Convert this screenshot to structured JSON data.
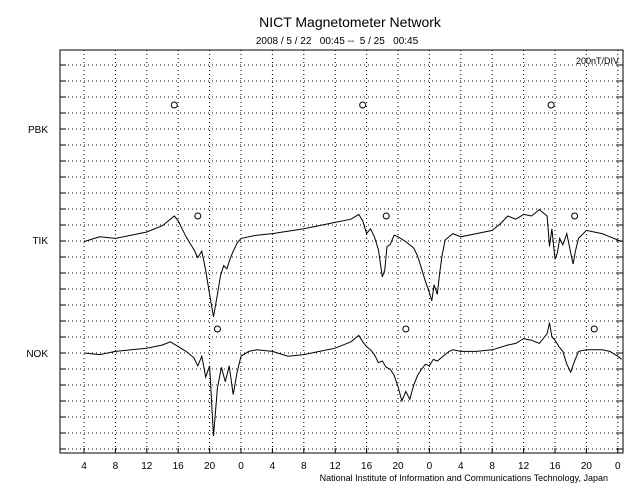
{
  "chart_data": {
    "type": "line",
    "title": "NICT Magnetometer Network",
    "subtitle": "2008 / 5 / 22   00:45 --  5 / 25   00:45",
    "scale_label": "200nT/DIV",
    "footer": "National Institute of Information and Communications Technology, Japan",
    "x_tick_labels": [
      "4",
      "8",
      "12",
      "16",
      "20",
      "0",
      "4",
      "8",
      "12",
      "16",
      "20",
      "0",
      "4",
      "8",
      "12",
      "16",
      "20",
      "0"
    ],
    "station_labels": [
      "PBK",
      "TIK",
      "NOK"
    ],
    "grid": true,
    "stations": [
      {
        "name": "PBK",
        "local_noon_x": [
          11.5,
          35.5,
          59.5
        ],
        "trace": []
      },
      {
        "name": "TIK",
        "local_noon_x": [
          14.5,
          38.5,
          62.5
        ],
        "trace": [
          [
            0,
            -0.05
          ],
          [
            2,
            0.1
          ],
          [
            4,
            0.05
          ],
          [
            6,
            0.15
          ],
          [
            8,
            0.25
          ],
          [
            10,
            0.45
          ],
          [
            11,
            0.65
          ],
          [
            11.5,
            0.75
          ],
          [
            12,
            0.6
          ],
          [
            12.5,
            0.35
          ],
          [
            13,
            0.1
          ],
          [
            13.5,
            -0.1
          ],
          [
            14,
            -0.3
          ],
          [
            14.5,
            -0.55
          ],
          [
            15,
            -0.35
          ],
          [
            15.5,
            -0.95
          ],
          [
            16,
            -1.7
          ],
          [
            16.5,
            -2.4
          ],
          [
            17,
            -1.7
          ],
          [
            17.4,
            -1.1
          ],
          [
            17.8,
            -0.8
          ],
          [
            18.2,
            -0.9
          ],
          [
            18.6,
            -0.6
          ],
          [
            19,
            -0.35
          ],
          [
            19.5,
            -0.1
          ],
          [
            20,
            0.05
          ],
          [
            22,
            0.15
          ],
          [
            24,
            0.2
          ],
          [
            28,
            0.35
          ],
          [
            32,
            0.55
          ],
          [
            34,
            0.65
          ],
          [
            35,
            0.8
          ],
          [
            35.5,
            0.6
          ],
          [
            36,
            0.2
          ],
          [
            36.5,
            0.35
          ],
          [
            37,
            0.1
          ],
          [
            37.5,
            -0.3
          ],
          [
            38,
            -1.15
          ],
          [
            38.3,
            -0.95
          ],
          [
            38.6,
            -0.2
          ],
          [
            39,
            -0.15
          ],
          [
            39.5,
            0.15
          ],
          [
            40,
            0.1
          ],
          [
            41,
            -0.05
          ],
          [
            42,
            -0.25
          ],
          [
            42.5,
            -0.5
          ],
          [
            43,
            -0.9
          ],
          [
            43.5,
            -1.3
          ],
          [
            44,
            -1.65
          ],
          [
            44.3,
            -1.9
          ],
          [
            44.6,
            -1.4
          ],
          [
            45,
            -1.7
          ],
          [
            45.3,
            -1.05
          ],
          [
            45.6,
            -0.5
          ],
          [
            46,
            0
          ],
          [
            46.5,
            0.1
          ],
          [
            47,
            0.2
          ],
          [
            48,
            0.1
          ],
          [
            50,
            0.2
          ],
          [
            52,
            0.3
          ],
          [
            53,
            0.5
          ],
          [
            54,
            0.75
          ],
          [
            55,
            0.65
          ],
          [
            56,
            0.8
          ],
          [
            57,
            0.75
          ],
          [
            58,
            0.95
          ],
          [
            59,
            0.75
          ],
          [
            59.3,
            -0.2
          ],
          [
            59.6,
            0.35
          ],
          [
            60,
            -0.6
          ],
          [
            60.3,
            -0.4
          ],
          [
            60.6,
            0.05
          ],
          [
            61,
            -0.15
          ],
          [
            61.5,
            0.2
          ],
          [
            62,
            -0.4
          ],
          [
            62.3,
            -0.75
          ],
          [
            62.6,
            -0.35
          ],
          [
            63,
            0.05
          ],
          [
            64,
            0.3
          ],
          [
            66,
            0.2
          ],
          [
            67,
            0.1
          ],
          [
            68,
            0
          ],
          [
            68.5,
            -0.05
          ]
        ]
      },
      {
        "name": "NOK",
        "local_noon_x": [
          17.0,
          41.0,
          65.0
        ],
        "trace": [
          [
            0,
            0
          ],
          [
            2,
            -0.05
          ],
          [
            4,
            0.05
          ],
          [
            6,
            0.1
          ],
          [
            8,
            0.15
          ],
          [
            10,
            0.25
          ],
          [
            11,
            0.35
          ],
          [
            12,
            0.2
          ],
          [
            13,
            0.05
          ],
          [
            14,
            -0.15
          ],
          [
            14.5,
            -0.4
          ],
          [
            15,
            -0.1
          ],
          [
            15.5,
            -0.75
          ],
          [
            16,
            -0.4
          ],
          [
            16.5,
            -2.6
          ],
          [
            17,
            -1.1
          ],
          [
            17.5,
            -0.45
          ],
          [
            18,
            -0.9
          ],
          [
            18.5,
            -0.4
          ],
          [
            19,
            -1.3
          ],
          [
            19.5,
            -0.6
          ],
          [
            20,
            -0.1
          ],
          [
            21,
            0.05
          ],
          [
            22,
            0.1
          ],
          [
            24,
            0.05
          ],
          [
            26,
            -0.1
          ],
          [
            28,
            -0.05
          ],
          [
            30,
            0.05
          ],
          [
            32,
            0.15
          ],
          [
            34,
            0.35
          ],
          [
            35,
            0.55
          ],
          [
            35.5,
            0.35
          ],
          [
            36,
            0.2
          ],
          [
            36.5,
            0.1
          ],
          [
            37,
            -0.05
          ],
          [
            37.5,
            -0.3
          ],
          [
            38,
            -0.25
          ],
          [
            38.5,
            -0.45
          ],
          [
            39,
            -0.5
          ],
          [
            39.5,
            -0.7
          ],
          [
            40,
            -1.05
          ],
          [
            40.5,
            -1.5
          ],
          [
            41,
            -1.2
          ],
          [
            41.5,
            -1.45
          ],
          [
            42,
            -1
          ],
          [
            42.5,
            -0.7
          ],
          [
            43,
            -0.5
          ],
          [
            43.5,
            -0.35
          ],
          [
            44,
            -0.4
          ],
          [
            44.5,
            -0.2
          ],
          [
            45,
            -0.25
          ],
          [
            46,
            -0.05
          ],
          [
            46.5,
            0.05
          ],
          [
            47,
            0.1
          ],
          [
            48,
            0.05
          ],
          [
            50,
            0.05
          ],
          [
            52,
            0.1
          ],
          [
            54,
            0.25
          ],
          [
            55,
            0.3
          ],
          [
            56,
            0.45
          ],
          [
            57,
            0.4
          ],
          [
            58,
            0.3
          ],
          [
            59,
            0.6
          ],
          [
            59.3,
            0.95
          ],
          [
            59.6,
            0.5
          ],
          [
            60,
            0.4
          ],
          [
            60.5,
            0.2
          ],
          [
            61,
            0.05
          ],
          [
            61.5,
            -0.35
          ],
          [
            62,
            -0.6
          ],
          [
            62.5,
            -0.25
          ],
          [
            63,
            0.05
          ],
          [
            64,
            0.1
          ],
          [
            66,
            0.1
          ],
          [
            67,
            0.05
          ],
          [
            68,
            -0.1
          ],
          [
            68.5,
            -0.2
          ]
        ]
      }
    ]
  }
}
